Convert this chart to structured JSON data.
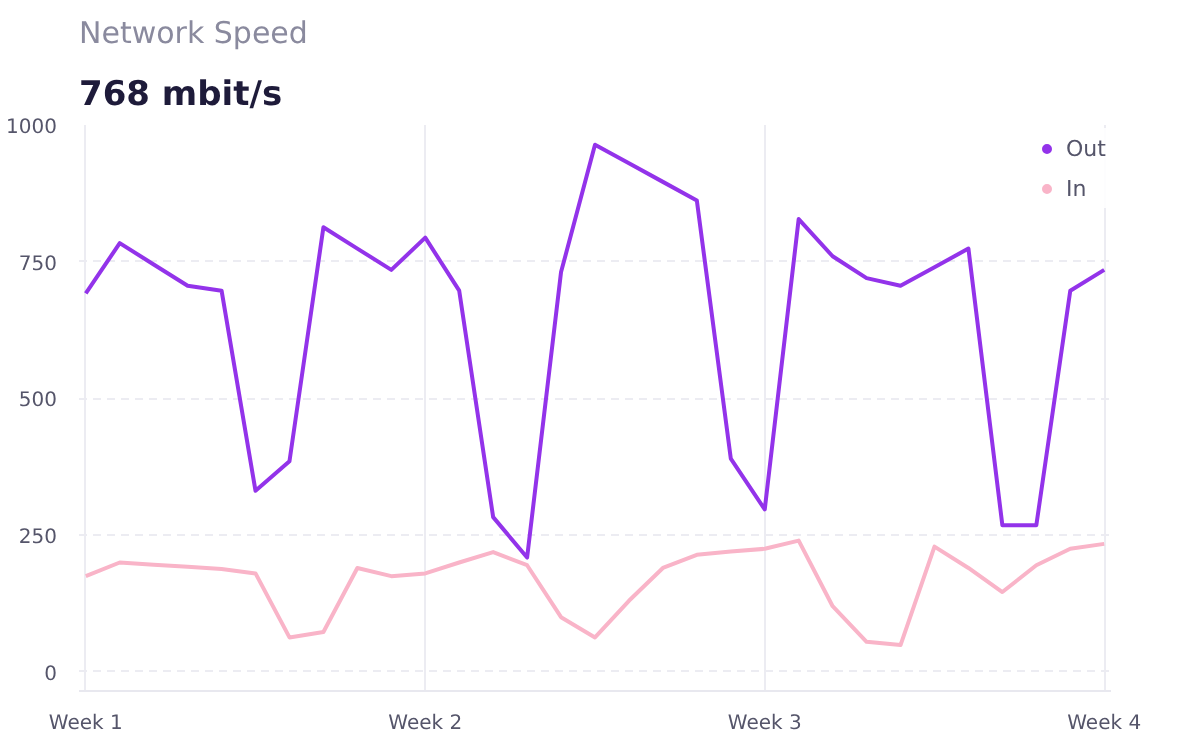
{
  "chart_data": {
    "type": "line",
    "title": "Network Speed",
    "subtitle": "768 mbit/s",
    "categories": [
      "Week 1",
      null,
      null,
      null,
      null,
      null,
      null,
      null,
      null,
      null,
      "Week 2",
      null,
      null,
      null,
      null,
      null,
      null,
      null,
      null,
      null,
      "Week 3",
      null,
      null,
      null,
      null,
      null,
      null,
      null,
      null,
      null,
      "Week 4"
    ],
    "ylim": [
      -35,
      1000
    ],
    "yticks": [
      0,
      250,
      500,
      750,
      1000
    ],
    "grid": true,
    "legend": "top right",
    "line_style": "solid",
    "series": [
      {
        "name": "Out",
        "color": "#9333ea",
        "values": [
          692,
          784,
          745,
          706,
          697,
          331,
          385,
          813,
          774,
          735,
          794,
          697,
          283,
          209,
          731,
          964,
          930,
          896,
          862,
          390,
          297,
          828,
          760,
          720,
          706,
          740,
          774,
          268,
          268,
          697,
          735
        ]
      },
      {
        "name": "In",
        "color": "#f9b4c8",
        "values": [
          175,
          200,
          196,
          192,
          188,
          180,
          63,
          73,
          190,
          175,
          180,
          200,
          219,
          195,
          100,
          63,
          130,
          190,
          214,
          220,
          225,
          240,
          120,
          55,
          49,
          229,
          190,
          146,
          195,
          225,
          234
        ]
      }
    ]
  }
}
